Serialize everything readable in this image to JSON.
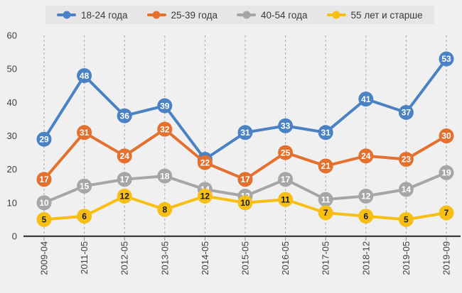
{
  "page": {
    "background": "#f0f0f0",
    "legend_background": "#e6e6e6"
  },
  "chart_data": {
    "type": "line",
    "title": "",
    "xlabel": "",
    "ylabel": "",
    "categories": [
      "2009-04",
      "2011-05",
      "2012-05",
      "2013-05",
      "2014-05",
      "2015-05",
      "2016-05",
      "2017-05",
      "2018-12",
      "2019-05",
      "2019-09"
    ],
    "series": [
      {
        "name": "18-24 года",
        "color": "#4a82c4",
        "label_color": "#ffffff",
        "values": [
          29,
          48,
          36,
          39,
          23,
          31,
          33,
          31,
          41,
          37,
          53
        ]
      },
      {
        "name": "25-39 года",
        "color": "#e4702e",
        "label_color": "#ffffff",
        "values": [
          17,
          31,
          24,
          32,
          22,
          17,
          25,
          21,
          24,
          23,
          30
        ]
      },
      {
        "name": "40-54 года",
        "color": "#a6a6a6",
        "label_color": "#ffffff",
        "values": [
          10,
          15,
          17,
          18,
          14,
          12,
          17,
          11,
          12,
          14,
          19
        ]
      },
      {
        "name": "55 лет и старше",
        "color": "#f7be16",
        "label_color": "#1a1a1a",
        "values": [
          5,
          6,
          12,
          8,
          12,
          10,
          11,
          7,
          6,
          5,
          7
        ]
      }
    ],
    "ylim": [
      0,
      60
    ],
    "yticks": [
      0,
      10,
      20,
      30,
      40,
      50,
      60
    ],
    "grid": "vertical-dashed",
    "grid_color": "#a9a9a9",
    "axis_color": "#3a3a3a",
    "legend_position": "top",
    "data_labels": "on-marker"
  }
}
